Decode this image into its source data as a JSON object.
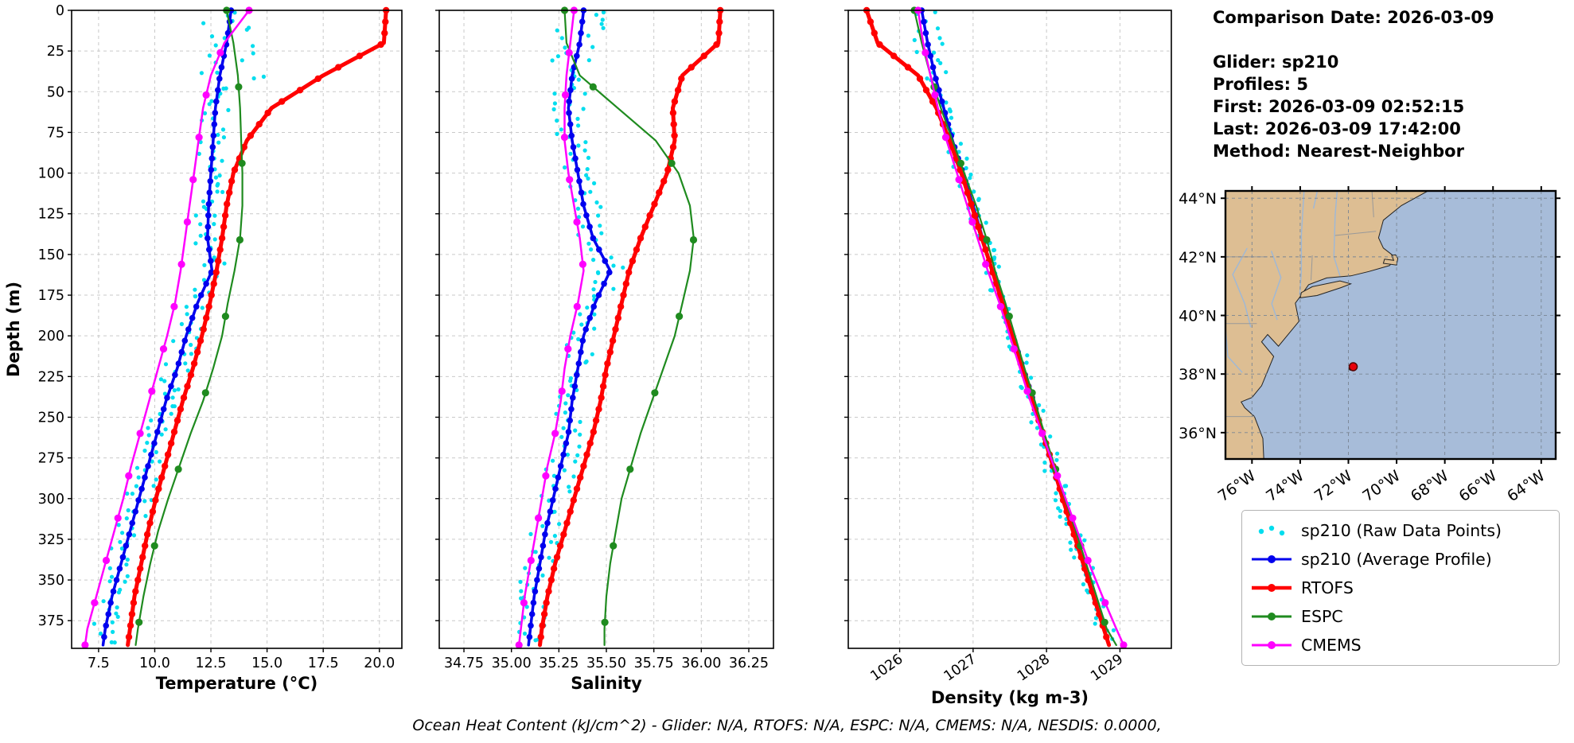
{
  "figure": {
    "info_lines": [
      "Comparison Date: 2026-03-09",
      "",
      "Glider: sp210",
      "Profiles: 5",
      "First: 2026-03-09 02:52:15",
      "Last: 2026-03-09 17:42:00",
      "Method: Nearest-Neighbor"
    ],
    "footer_note": "Ocean Heat Content (kJ/cm^2) - Glider: N/A,  RTOFS: N/A,  ESPC: N/A,  CMEMS: N/A,  NESDIS: 0.0000,"
  },
  "legend": {
    "entries": [
      {
        "label": "sp210 (Raw Data Points)",
        "color": "#00DDEE",
        "style": "dots"
      },
      {
        "label": "sp210 (Average Profile)",
        "color": "#0000EE",
        "style": "line-marker"
      },
      {
        "label": "RTOFS",
        "color": "#FF0000",
        "style": "line-marker"
      },
      {
        "label": "ESPC",
        "color": "#1F8B1F",
        "style": "line-marker"
      },
      {
        "label": "CMEMS",
        "color": "#FF00FF",
        "style": "line-marker"
      }
    ]
  },
  "chart_data": [
    {
      "type": "line",
      "name": "temperature-profile",
      "xlabel": "Temperature (°C)",
      "ylabel": "Depth (m)",
      "xlim": [
        6.3,
        21.0
      ],
      "ylim": [
        0,
        392
      ],
      "xticks": [
        7.5,
        10.0,
        12.5,
        15.0,
        17.5,
        20.0
      ],
      "xtick_labels": [
        "7.5",
        "10.0",
        "12.5",
        "15.0",
        "17.5",
        "20.0"
      ],
      "yticks": [
        0,
        25,
        50,
        75,
        100,
        125,
        150,
        175,
        200,
        225,
        250,
        275,
        300,
        325,
        350,
        375
      ],
      "grid": true,
      "depths": [
        0,
        20,
        40,
        60,
        80,
        100,
        120,
        140,
        160,
        180,
        200,
        220,
        240,
        260,
        280,
        300,
        320,
        340,
        360,
        380,
        390
      ],
      "raw": {
        "name": "sp210 (Raw Data Points)",
        "color": "#00DDEE",
        "step": 5,
        "spread": 0.6,
        "top_depth": 45,
        "top_factor": 2.4,
        "top_bias": 1.0,
        "seed": 11
      },
      "series": [
        {
          "name": "sp210 (Average Profile)",
          "color": "#0000EE",
          "lw": 3.5,
          "ms": 3.8,
          "marker_step": 7,
          "values": [
            13.4,
            13.2,
            12.9,
            12.7,
            12.6,
            12.5,
            12.4,
            12.35,
            12.55,
            11.9,
            11.4,
            11.0,
            10.5,
            10.1,
            9.7,
            9.3,
            8.9,
            8.5,
            8.1,
            7.8,
            7.7
          ]
        },
        {
          "name": "RTOFS",
          "color": "#FF0000",
          "lw": 5,
          "ms": 4.2,
          "marker_step": 7,
          "values": [
            20.3,
            20.2,
            17.5,
            15.2,
            14.1,
            13.5,
            13.2,
            13.0,
            12.75,
            12.45,
            12.1,
            11.7,
            11.25,
            10.85,
            10.45,
            10.05,
            9.7,
            9.4,
            9.1,
            8.9,
            8.8
          ]
        },
        {
          "name": "ESPC",
          "color": "#1F8B1F",
          "lw": 2.2,
          "ms": 4.6,
          "marker_step": 47,
          "values": [
            13.2,
            13.5,
            13.7,
            13.8,
            13.85,
            13.9,
            13.9,
            13.8,
            13.55,
            13.25,
            13.0,
            12.6,
            12.15,
            11.6,
            11.1,
            10.6,
            10.15,
            9.8,
            9.5,
            9.25,
            9.15
          ]
        },
        {
          "name": "CMEMS",
          "color": "#FF00FF",
          "lw": 2.5,
          "ms": 4.6,
          "marker_step": 26,
          "values": [
            14.2,
            13.1,
            12.5,
            12.15,
            11.95,
            11.75,
            11.55,
            11.35,
            11.15,
            10.9,
            10.55,
            10.15,
            9.75,
            9.35,
            8.95,
            8.6,
            8.2,
            7.8,
            7.4,
            7.0,
            6.9
          ]
        }
      ]
    },
    {
      "type": "line",
      "name": "salinity-profile",
      "xlabel": "Salinity",
      "ylabel": "",
      "xlim": [
        34.62,
        36.38
      ],
      "ylim": [
        0,
        392
      ],
      "xticks": [
        34.75,
        35.0,
        35.25,
        35.5,
        35.75,
        36.0,
        36.25
      ],
      "xtick_labels": [
        "34.75",
        "35.00",
        "35.25",
        "35.50",
        "35.75",
        "36.00",
        "36.25"
      ],
      "yticks": [
        0,
        25,
        50,
        75,
        100,
        125,
        150,
        175,
        200,
        225,
        250,
        275,
        300,
        325,
        350,
        375
      ],
      "grid": true,
      "depths": [
        0,
        20,
        40,
        60,
        80,
        100,
        120,
        140,
        160,
        180,
        200,
        220,
        240,
        260,
        280,
        300,
        320,
        340,
        360,
        380,
        390
      ],
      "raw": {
        "name": "sp210 (Raw Data Points)",
        "color": "#00DDEE",
        "step": 5,
        "spread": 0.085,
        "top_depth": 40,
        "top_factor": 1.7,
        "top_bias": 0.03,
        "seed": 22
      },
      "series": [
        {
          "name": "sp210 (Average Profile)",
          "color": "#0000EE",
          "lw": 3.5,
          "ms": 3.8,
          "marker_step": 7,
          "values": [
            35.38,
            35.36,
            35.32,
            35.3,
            35.32,
            35.35,
            35.38,
            35.43,
            35.52,
            35.44,
            35.38,
            35.35,
            35.32,
            35.3,
            35.26,
            35.22,
            35.18,
            35.15,
            35.12,
            35.1,
            35.09
          ]
        },
        {
          "name": "RTOFS",
          "color": "#FF0000",
          "lw": 5,
          "ms": 4.2,
          "marker_step": 7,
          "values": [
            36.1,
            36.09,
            35.9,
            35.85,
            35.86,
            35.82,
            35.75,
            35.68,
            35.62,
            35.58,
            35.54,
            35.5,
            35.47,
            35.43,
            35.38,
            35.33,
            35.28,
            35.23,
            35.19,
            35.16,
            35.15
          ]
        },
        {
          "name": "ESPC",
          "color": "#1F8B1F",
          "lw": 2.2,
          "ms": 4.6,
          "marker_step": 47,
          "values": [
            35.28,
            35.29,
            35.36,
            35.56,
            35.76,
            35.88,
            35.94,
            35.96,
            35.94,
            35.9,
            35.86,
            35.8,
            35.74,
            35.68,
            35.63,
            35.58,
            35.55,
            35.52,
            35.5,
            35.49,
            35.49
          ]
        },
        {
          "name": "CMEMS",
          "color": "#FF00FF",
          "lw": 2.5,
          "ms": 4.6,
          "marker_step": 26,
          "values": [
            35.33,
            35.31,
            35.29,
            35.28,
            35.28,
            35.3,
            35.33,
            35.36,
            35.38,
            35.35,
            35.31,
            35.28,
            35.26,
            35.23,
            35.19,
            35.16,
            35.13,
            35.1,
            35.07,
            35.05,
            35.04
          ]
        }
      ]
    },
    {
      "type": "line",
      "name": "density-profile",
      "xlabel": "Density (kg m-3)",
      "ylabel": "",
      "xlim": [
        1025.3,
        1029.7
      ],
      "ylim": [
        0,
        392
      ],
      "xticks": [
        1026,
        1027,
        1028,
        1029
      ],
      "xtick_labels": [
        "1026",
        "1027",
        "1028",
        "1029"
      ],
      "yticks": [
        0,
        25,
        50,
        75,
        100,
        125,
        150,
        175,
        200,
        225,
        250,
        275,
        300,
        325,
        350,
        375
      ],
      "grid": true,
      "depths": [
        0,
        20,
        40,
        60,
        80,
        100,
        120,
        140,
        160,
        180,
        200,
        220,
        240,
        260,
        280,
        300,
        320,
        340,
        360,
        380,
        390
      ],
      "raw": {
        "name": "sp210 (Raw Data Points)",
        "color": "#00DDEE",
        "step": 5,
        "spread": 0.12,
        "top_depth": 40,
        "top_factor": 1.6,
        "top_bias": 0.0,
        "seed": 33
      },
      "series": [
        {
          "name": "sp210 (Average Profile)",
          "color": "#0000EE",
          "lw": 3.5,
          "ms": 3.8,
          "marker_step": 7,
          "values": [
            1026.3,
            1026.38,
            1026.48,
            1026.6,
            1026.72,
            1026.86,
            1027.0,
            1027.13,
            1027.26,
            1027.4,
            1027.54,
            1027.68,
            1027.82,
            1027.95,
            1028.08,
            1028.22,
            1028.36,
            1028.5,
            1028.64,
            1028.78,
            1028.85
          ]
        },
        {
          "name": "RTOFS",
          "color": "#FF0000",
          "lw": 5,
          "ms": 4.2,
          "marker_step": 7,
          "values": [
            1025.55,
            1025.7,
            1026.25,
            1026.5,
            1026.68,
            1026.84,
            1026.98,
            1027.12,
            1027.26,
            1027.4,
            1027.53,
            1027.67,
            1027.81,
            1027.95,
            1028.09,
            1028.22,
            1028.36,
            1028.5,
            1028.64,
            1028.78,
            1028.85
          ]
        },
        {
          "name": "ESPC",
          "color": "#1F8B1F",
          "lw": 2.2,
          "ms": 4.6,
          "marker_step": 47,
          "values": [
            1026.2,
            1026.3,
            1026.42,
            1026.56,
            1026.72,
            1026.88,
            1027.04,
            1027.18,
            1027.3,
            1027.44,
            1027.57,
            1027.7,
            1027.84,
            1027.97,
            1028.11,
            1028.25,
            1028.4,
            1028.54,
            1028.68,
            1028.82,
            1028.95
          ]
        },
        {
          "name": "CMEMS",
          "color": "#FF00FF",
          "lw": 2.5,
          "ms": 4.6,
          "marker_step": 26,
          "values": [
            1026.25,
            1026.32,
            1026.42,
            1026.52,
            1026.64,
            1026.78,
            1026.92,
            1027.06,
            1027.2,
            1027.36,
            1027.5,
            1027.64,
            1027.78,
            1027.94,
            1028.1,
            1028.26,
            1028.42,
            1028.58,
            1028.76,
            1028.95,
            1029.05
          ]
        }
      ]
    }
  ],
  "map": {
    "lon_range": [
      -77.1,
      -63.4
    ],
    "lat_range": [
      35.1,
      44.25
    ],
    "lon_ticks": [
      -76,
      -74,
      -72,
      -70,
      -68,
      -66,
      -64
    ],
    "lon_tick_labels": [
      "76°W",
      "74°W",
      "72°W",
      "70°W",
      "68°W",
      "66°W",
      "64°W"
    ],
    "lat_ticks": [
      36,
      38,
      40,
      42,
      44
    ],
    "lat_tick_labels": [
      "36°N",
      "38°N",
      "40°N",
      "42°N",
      "44°N"
    ],
    "glider_marker": {
      "lon": -71.8,
      "lat": 38.25,
      "color": "#E8000B",
      "edge": "#550000"
    },
    "land_color": "#DDBE93",
    "ocean_color": "#A7BCD9",
    "river_color": "#9DB8D8",
    "border_color": "#999999",
    "land_polygons": [
      [
        [
          -77.5,
          45.2
        ],
        [
          -66.9,
          45.2
        ],
        [
          -67.15,
          44.65
        ],
        [
          -67.9,
          44.45
        ],
        [
          -68.7,
          44.25
        ],
        [
          -69.8,
          43.75
        ],
        [
          -70.55,
          43.25
        ],
        [
          -70.75,
          42.65
        ],
        [
          -70.55,
          42.3
        ],
        [
          -70.0,
          41.95
        ],
        [
          -70.3,
          41.7
        ],
        [
          -71.15,
          41.5
        ],
        [
          -71.9,
          41.35
        ],
        [
          -72.9,
          41.28
        ],
        [
          -73.65,
          41.05
        ],
        [
          -74.02,
          40.62
        ],
        [
          -74.2,
          40.42
        ],
        [
          -74.05,
          39.8
        ],
        [
          -74.9,
          38.95
        ],
        [
          -75.35,
          39.35
        ],
        [
          -75.6,
          39.1
        ],
        [
          -75.1,
          38.6
        ],
        [
          -75.6,
          37.6
        ],
        [
          -76.0,
          37.2
        ],
        [
          -76.45,
          37.05
        ],
        [
          -76.3,
          36.85
        ],
        [
          -75.9,
          36.55
        ],
        [
          -75.55,
          35.8
        ],
        [
          -75.5,
          34.9
        ],
        [
          -77.5,
          34.9
        ]
      ],
      [
        [
          -74.0,
          40.6
        ],
        [
          -73.3,
          40.68
        ],
        [
          -72.3,
          40.95
        ],
        [
          -71.9,
          41.08
        ],
        [
          -72.35,
          41.18
        ],
        [
          -73.5,
          40.98
        ],
        [
          -73.95,
          40.78
        ]
      ],
      [
        [
          -70.55,
          41.78
        ],
        [
          -70.0,
          41.72
        ],
        [
          -69.95,
          41.95
        ],
        [
          -70.05,
          42.07
        ],
        [
          -70.2,
          42.05
        ],
        [
          -70.12,
          41.88
        ],
        [
          -70.5,
          41.92
        ]
      ],
      [
        [
          -66.35,
          45.2
        ],
        [
          -65.1,
          44.75
        ],
        [
          -64.2,
          44.42
        ],
        [
          -63.4,
          44.42
        ],
        [
          -63.0,
          44.55
        ],
        [
          -63.0,
          45.2
        ]
      ]
    ],
    "rivers": [
      [
        [
          -73.8,
          44.8
        ],
        [
          -73.95,
          42.75
        ],
        [
          -73.95,
          41.5
        ],
        [
          -74.02,
          40.7
        ]
      ],
      [
        [
          -72.4,
          44.9
        ],
        [
          -72.55,
          43.4
        ],
        [
          -72.6,
          42.0
        ],
        [
          -72.35,
          41.35
        ]
      ],
      [
        [
          -75.2,
          42.2
        ],
        [
          -74.8,
          41.3
        ],
        [
          -75.18,
          40.4
        ],
        [
          -74.95,
          39.85
        ]
      ],
      [
        [
          -76.2,
          42.3
        ],
        [
          -76.8,
          41.4
        ],
        [
          -76.3,
          40.4
        ],
        [
          -76.05,
          39.6
        ]
      ],
      [
        [
          -77.1,
          39.6
        ],
        [
          -77.0,
          38.6
        ],
        [
          -76.4,
          38.05
        ]
      ],
      [
        [
          -73.35,
          45.05
        ],
        [
          -73.3,
          44.2
        ],
        [
          -73.45,
          43.65
        ]
      ]
    ],
    "borders": [
      [
        [
          -77.1,
          42.0
        ],
        [
          -75.35,
          42.0
        ]
      ],
      [
        [
          -73.5,
          42.05
        ],
        [
          -73.55,
          41.2
        ]
      ],
      [
        [
          -72.55,
          42.73
        ],
        [
          -70.85,
          42.87
        ]
      ],
      [
        [
          -71.1,
          45.2
        ],
        [
          -70.95,
          43.35
        ]
      ],
      [
        [
          -77.1,
          39.72
        ],
        [
          -75.8,
          39.72
        ]
      ],
      [
        [
          -77.1,
          36.55
        ],
        [
          -75.9,
          36.55
        ]
      ]
    ]
  }
}
